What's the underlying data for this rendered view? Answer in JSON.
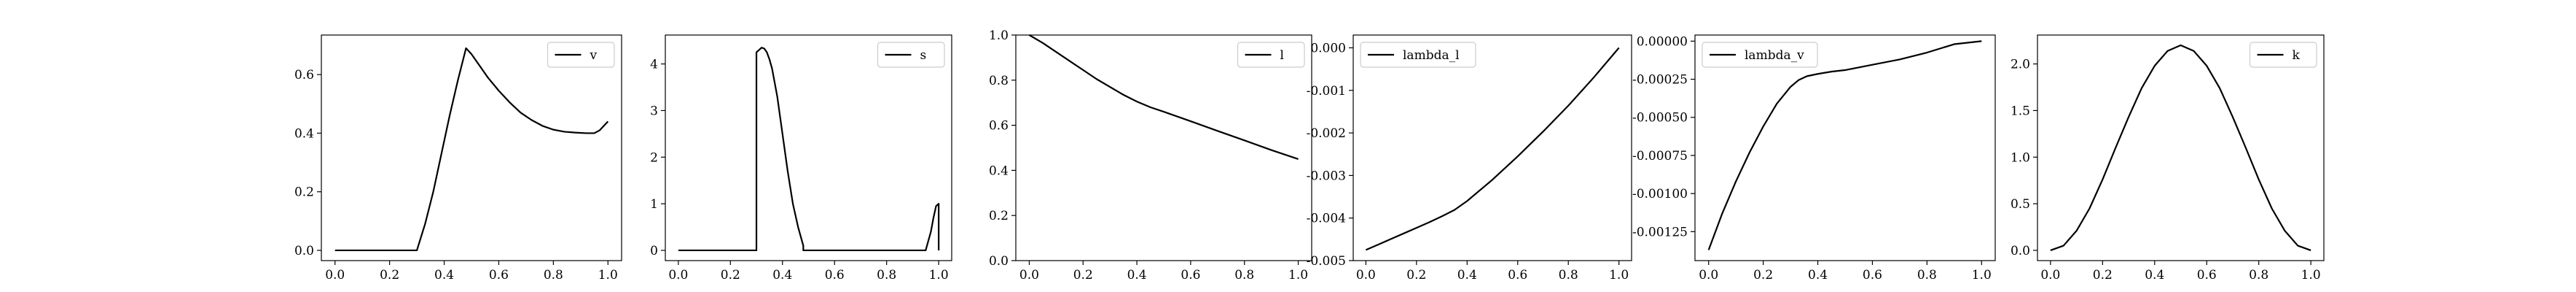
{
  "chart_data": [
    {
      "type": "line",
      "title": "",
      "xlabel": "",
      "ylabel": "",
      "xlim": [
        -0.05,
        1.05
      ],
      "ylim": [
        -0.035,
        0.735
      ],
      "xticks": [
        "0.0",
        "0.2",
        "0.4",
        "0.6",
        "0.8",
        "1.0"
      ],
      "yticks": [
        "0.0",
        "0.2",
        "0.4",
        "0.6"
      ],
      "legend": "top-right",
      "grid": false,
      "series": [
        {
          "name": "v",
          "color": "#000000",
          "x": [
            0,
            0.3,
            0.33,
            0.36,
            0.39,
            0.42,
            0.45,
            0.48,
            0.5,
            0.53,
            0.56,
            0.6,
            0.64,
            0.68,
            0.72,
            0.76,
            0.8,
            0.84,
            0.88,
            0.92,
            0.95,
            0.97,
            0.99,
            1.0
          ],
          "y": [
            0,
            0,
            0.09,
            0.2,
            0.33,
            0.46,
            0.58,
            0.69,
            0.67,
            0.63,
            0.59,
            0.545,
            0.505,
            0.47,
            0.445,
            0.425,
            0.412,
            0.405,
            0.402,
            0.4,
            0.4,
            0.41,
            0.43,
            0.44
          ]
        }
      ]
    },
    {
      "type": "line",
      "title": "",
      "xlabel": "",
      "ylabel": "",
      "xlim": [
        -0.05,
        1.05
      ],
      "ylim": [
        -0.22,
        4.62
      ],
      "xticks": [
        "0.0",
        "0.2",
        "0.4",
        "0.6",
        "0.8",
        "1.0"
      ],
      "yticks": [
        "0",
        "1",
        "2",
        "3",
        "4"
      ],
      "legend": "top-right",
      "grid": false,
      "series": [
        {
          "name": "s",
          "color": "#000000",
          "x": [
            0,
            0.3,
            0.3,
            0.31,
            0.32,
            0.33,
            0.34,
            0.35,
            0.36,
            0.38,
            0.4,
            0.42,
            0.44,
            0.46,
            0.48,
            0.48,
            0.95,
            0.97,
            0.98,
            0.99,
            1.0,
            1.0
          ],
          "y": [
            0,
            0,
            4.25,
            4.3,
            4.35,
            4.33,
            4.25,
            4.1,
            3.9,
            3.3,
            2.5,
            1.7,
            1.0,
            0.5,
            0.1,
            0,
            0,
            0.4,
            0.7,
            0.95,
            1.0,
            0
          ]
        }
      ]
    },
    {
      "type": "line",
      "title": "",
      "xlabel": "",
      "ylabel": "",
      "xlim": [
        -0.05,
        1.05
      ],
      "ylim": [
        0.0,
        1.0
      ],
      "xticks": [
        "0.0",
        "0.2",
        "0.4",
        "0.6",
        "0.8",
        "1.0"
      ],
      "yticks": [
        "0.0",
        "0.2",
        "0.4",
        "0.6",
        "0.8",
        "1.0"
      ],
      "legend": "top-right",
      "grid": false,
      "series": [
        {
          "name": "l",
          "color": "#000000",
          "x": [
            0,
            0.05,
            0.1,
            0.15,
            0.2,
            0.25,
            0.3,
            0.35,
            0.4,
            0.45,
            0.5,
            0.6,
            0.7,
            0.8,
            0.9,
            1.0
          ],
          "y": [
            1.0,
            0.965,
            0.925,
            0.885,
            0.845,
            0.805,
            0.77,
            0.735,
            0.705,
            0.68,
            0.66,
            0.618,
            0.575,
            0.533,
            0.49,
            0.45
          ]
        }
      ]
    },
    {
      "type": "line",
      "title": "",
      "xlabel": "",
      "ylabel": "",
      "xlim": [
        -0.05,
        1.05
      ],
      "ylim": [
        -0.005,
        0.0003
      ],
      "xticks": [
        "0.0",
        "0.2",
        "0.4",
        "0.6",
        "0.8",
        "1.0"
      ],
      "yticks": [
        "0.000",
        "-0.001",
        "-0.002",
        "-0.003",
        "-0.004",
        "-0.005"
      ],
      "legend": "top-left",
      "grid": false,
      "series": [
        {
          "name": "lambda_l",
          "color": "#000000",
          "x": [
            0,
            0.05,
            0.1,
            0.15,
            0.2,
            0.25,
            0.3,
            0.35,
            0.4,
            0.5,
            0.6,
            0.7,
            0.8,
            0.9,
            1.0
          ],
          "y": [
            -0.00475,
            -0.00462,
            -0.00449,
            -0.00436,
            -0.00423,
            -0.0041,
            -0.00396,
            -0.00381,
            -0.0036,
            -0.0031,
            -0.00255,
            -0.00197,
            -0.00136,
            -0.0007,
            0.0
          ]
        }
      ]
    },
    {
      "type": "line",
      "title": "",
      "xlabel": "",
      "ylabel": "",
      "xlim": [
        -0.05,
        1.05
      ],
      "ylim": [
        -0.00144,
        4e-05
      ],
      "xticks": [
        "0.0",
        "0.2",
        "0.4",
        "0.6",
        "0.8",
        "1.0"
      ],
      "yticks": [
        "0.00000",
        "-0.00025",
        "-0.00050",
        "-0.00075",
        "-0.00100",
        "-0.00125"
      ],
      "legend": "top-left",
      "grid": false,
      "series": [
        {
          "name": "lambda_v",
          "color": "#000000",
          "x": [
            0,
            0.05,
            0.1,
            0.15,
            0.2,
            0.25,
            0.3,
            0.33,
            0.36,
            0.4,
            0.45,
            0.5,
            0.6,
            0.7,
            0.8,
            0.9,
            1.0
          ],
          "y": [
            -0.00137,
            -0.00113,
            -0.00092,
            -0.00073,
            -0.00056,
            -0.00041,
            -0.0003,
            -0.000255,
            -0.00023,
            -0.000215,
            -0.0002,
            -0.00019,
            -0.000155,
            -0.00012,
            -7.5e-05,
            -2e-05,
            0.0
          ]
        }
      ]
    },
    {
      "type": "line",
      "title": "",
      "xlabel": "",
      "ylabel": "",
      "xlim": [
        -0.05,
        1.05
      ],
      "ylim": [
        -0.11,
        2.31
      ],
      "xticks": [
        "0.0",
        "0.2",
        "0.4",
        "0.6",
        "0.8",
        "1.0"
      ],
      "yticks": [
        "0.0",
        "0.5",
        "1.0",
        "1.5",
        "2.0"
      ],
      "legend": "top-right",
      "grid": false,
      "series": [
        {
          "name": "k",
          "color": "#000000",
          "x": [
            0,
            0.05,
            0.1,
            0.15,
            0.2,
            0.25,
            0.3,
            0.35,
            0.4,
            0.45,
            0.5,
            0.55,
            0.6,
            0.65,
            0.7,
            0.75,
            0.8,
            0.85,
            0.9,
            0.95,
            1.0
          ],
          "y": [
            0,
            0.05,
            0.21,
            0.45,
            0.76,
            1.1,
            1.43,
            1.74,
            1.98,
            2.14,
            2.2,
            2.14,
            1.98,
            1.74,
            1.43,
            1.1,
            0.76,
            0.45,
            0.21,
            0.05,
            0
          ]
        }
      ]
    }
  ]
}
